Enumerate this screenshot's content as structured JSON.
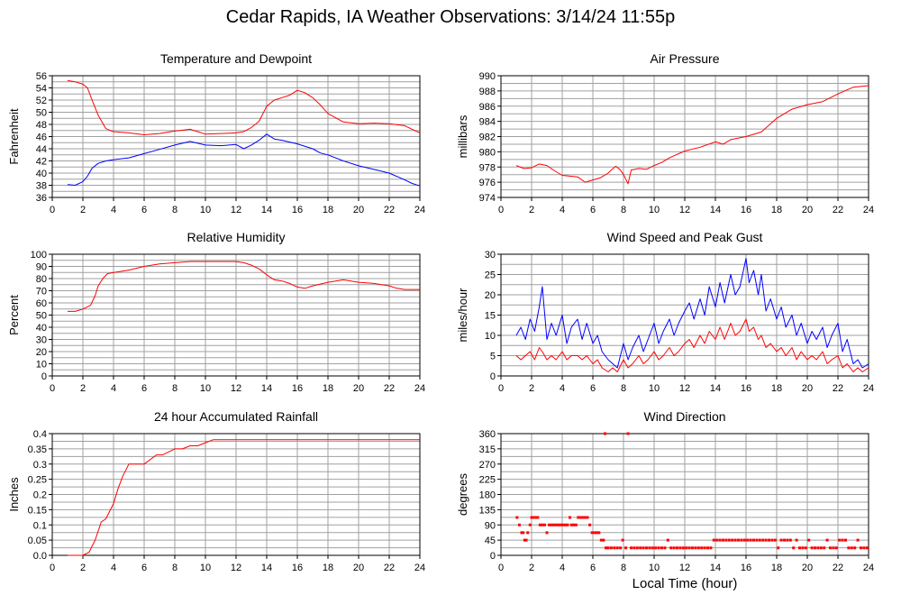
{
  "page_title": "Cedar Rapids, IA Weather Observations: 3/14/24 11:55p",
  "x_axis_label": "Local Time (hour)",
  "colors": {
    "red": "#ff0000",
    "blue": "#0000ff",
    "grid": "#a0a0a0",
    "frame": "#000000"
  },
  "chart_data": [
    {
      "type": "line",
      "title": "Temperature and Dewpoint",
      "ylabel": "Fahrenheit",
      "xlabel": "",
      "xlim": [
        0,
        24
      ],
      "ylim": [
        36,
        56
      ],
      "x_ticks": [
        0,
        2,
        4,
        6,
        8,
        10,
        12,
        14,
        16,
        18,
        20,
        22,
        24
      ],
      "y_ticks": [
        36,
        38,
        40,
        42,
        44,
        46,
        48,
        50,
        52,
        54,
        56
      ],
      "grid": true,
      "series": [
        {
          "color": "#ff0000",
          "x": [
            1.0,
            1.5,
            2.0,
            2.3,
            2.6,
            3.0,
            3.5,
            4.0,
            5.0,
            6.0,
            7.0,
            8.0,
            9.0,
            10.0,
            11.0,
            12.0,
            12.5,
            13.0,
            13.5,
            14.0,
            14.5,
            15.0,
            15.5,
            16.0,
            16.5,
            17.0,
            17.5,
            18.0,
            19.0,
            20.0,
            21.0,
            22.0,
            23.0,
            23.5,
            24.0
          ],
          "values": [
            55.2,
            55.0,
            54.6,
            54.0,
            52.0,
            49.5,
            47.3,
            46.8,
            46.6,
            46.3,
            46.5,
            46.9,
            47.2,
            46.4,
            46.5,
            46.6,
            46.8,
            47.5,
            48.5,
            51.0,
            52.0,
            52.4,
            52.8,
            53.6,
            53.2,
            52.4,
            51.2,
            49.8,
            48.4,
            48.1,
            48.2,
            48.1,
            47.8,
            47.2,
            46.6
          ]
        },
        {
          "color": "#0000ff",
          "x": [
            1.0,
            1.5,
            2.0,
            2.3,
            2.6,
            3.0,
            3.5,
            4.0,
            5.0,
            6.0,
            7.0,
            8.0,
            9.0,
            10.0,
            11.0,
            12.0,
            12.5,
            13.0,
            13.5,
            14.0,
            14.5,
            15.0,
            16.0,
            17.0,
            17.5,
            18.0,
            19.0,
            20.0,
            21.0,
            22.0,
            23.0,
            23.5,
            24.0
          ],
          "values": [
            38.1,
            38.0,
            38.6,
            39.5,
            40.8,
            41.6,
            42.0,
            42.2,
            42.5,
            43.2,
            43.9,
            44.6,
            45.2,
            44.6,
            44.5,
            44.7,
            44.0,
            44.6,
            45.4,
            46.4,
            45.6,
            45.4,
            44.8,
            44.0,
            43.3,
            43.0,
            42.0,
            41.2,
            40.6,
            40.0,
            38.9,
            38.3,
            37.9
          ]
        }
      ]
    },
    {
      "type": "line",
      "title": "Air Pressure",
      "ylabel": "millibars",
      "xlabel": "",
      "xlim": [
        0,
        24
      ],
      "ylim": [
        974,
        990
      ],
      "x_ticks": [
        0,
        2,
        4,
        6,
        8,
        10,
        12,
        14,
        16,
        18,
        20,
        22,
        24
      ],
      "y_ticks": [
        974,
        976,
        978,
        980,
        982,
        984,
        986,
        988,
        990
      ],
      "grid": true,
      "series": [
        {
          "color": "#ff0000",
          "x": [
            1.0,
            1.5,
            2.0,
            2.5,
            3.0,
            3.5,
            4.0,
            4.5,
            5.0,
            5.5,
            6.0,
            6.5,
            7.0,
            7.2,
            7.5,
            7.8,
            8.0,
            8.3,
            8.5,
            9.0,
            9.5,
            10.0,
            10.5,
            11.0,
            12.0,
            13.0,
            14.0,
            14.5,
            15.0,
            16.0,
            17.0,
            18.0,
            19.0,
            20.0,
            21.0,
            22.0,
            23.0,
            24.0
          ],
          "values": [
            978.2,
            977.8,
            977.9,
            978.4,
            978.2,
            977.5,
            976.9,
            976.8,
            976.7,
            976.0,
            976.3,
            976.6,
            977.2,
            977.6,
            978.1,
            977.6,
            977.0,
            975.8,
            977.6,
            977.8,
            977.7,
            978.2,
            978.6,
            979.2,
            980.1,
            980.6,
            981.3,
            981.0,
            981.6,
            982.0,
            982.6,
            984.4,
            985.6,
            986.2,
            986.6,
            987.6,
            988.5,
            988.7
          ]
        }
      ]
    },
    {
      "type": "line",
      "title": "Relative Humidity",
      "ylabel": "Percent",
      "xlabel": "",
      "xlim": [
        0,
        24
      ],
      "ylim": [
        0,
        100
      ],
      "x_ticks": [
        0,
        2,
        4,
        6,
        8,
        10,
        12,
        14,
        16,
        18,
        20,
        22,
        24
      ],
      "y_ticks": [
        0,
        10,
        20,
        30,
        40,
        50,
        60,
        70,
        80,
        90,
        100
      ],
      "grid": true,
      "series": [
        {
          "color": "#ff0000",
          "x": [
            1.0,
            1.5,
            2.0,
            2.5,
            2.8,
            3.0,
            3.3,
            3.6,
            4.0,
            5.0,
            6.0,
            7.0,
            8.0,
            9.0,
            10.0,
            11.0,
            12.0,
            12.5,
            13.0,
            13.5,
            14.0,
            14.5,
            15.0,
            15.5,
            16.0,
            16.5,
            17.0,
            18.0,
            19.0,
            20.0,
            21.0,
            22.0,
            22.5,
            23.0,
            24.0
          ],
          "values": [
            53,
            53,
            55,
            58,
            66,
            74,
            80,
            84,
            85,
            87,
            90,
            92,
            93,
            94,
            94,
            94,
            94,
            93,
            91,
            88,
            83,
            79,
            78,
            76,
            73,
            72,
            74,
            77,
            79,
            77,
            76,
            74,
            72,
            71,
            71
          ]
        }
      ]
    },
    {
      "type": "line",
      "title": "Wind Speed and Peak Gust",
      "ylabel": "miles/hour",
      "xlabel": "",
      "xlim": [
        0,
        24
      ],
      "ylim": [
        0,
        30
      ],
      "x_ticks": [
        0,
        2,
        4,
        6,
        8,
        10,
        12,
        14,
        16,
        18,
        20,
        22,
        24
      ],
      "y_ticks": [
        0,
        5,
        10,
        15,
        20,
        25,
        30
      ],
      "grid": true,
      "series": [
        {
          "color": "#0000ff",
          "x": [
            1.0,
            1.3,
            1.6,
            1.9,
            2.2,
            2.5,
            2.7,
            3.0,
            3.3,
            3.6,
            4.0,
            4.3,
            4.6,
            5.0,
            5.3,
            5.6,
            6.0,
            6.3,
            6.6,
            7.0,
            7.3,
            7.6,
            8.0,
            8.3,
            8.6,
            9.0,
            9.3,
            9.6,
            10.0,
            10.3,
            10.6,
            11.0,
            11.3,
            11.6,
            12.0,
            12.3,
            12.6,
            13.0,
            13.3,
            13.6,
            14.0,
            14.3,
            14.6,
            15.0,
            15.3,
            15.6,
            16.0,
            16.2,
            16.5,
            16.8,
            17.0,
            17.3,
            17.6,
            18.0,
            18.3,
            18.6,
            19.0,
            19.3,
            19.6,
            20.0,
            20.3,
            20.6,
            21.0,
            21.3,
            21.6,
            22.0,
            22.3,
            22.6,
            23.0,
            23.3,
            23.6,
            24.0
          ],
          "values": [
            10,
            12,
            9,
            14,
            11,
            17,
            22,
            9,
            13,
            10,
            15,
            8,
            12,
            14,
            9,
            13,
            8,
            10,
            6,
            4,
            3,
            2,
            8,
            4,
            7,
            10,
            6,
            9,
            13,
            8,
            11,
            14,
            10,
            13,
            16,
            18,
            14,
            19,
            15,
            22,
            17,
            23,
            18,
            25,
            20,
            22,
            29,
            23,
            26,
            20,
            25,
            16,
            19,
            14,
            17,
            12,
            15,
            10,
            13,
            8,
            11,
            9,
            12,
            7,
            10,
            13,
            6,
            9,
            3,
            4,
            2,
            3
          ]
        },
        {
          "color": "#ff0000",
          "x": [
            1.0,
            1.3,
            1.6,
            1.9,
            2.2,
            2.5,
            2.7,
            3.0,
            3.3,
            3.6,
            4.0,
            4.3,
            4.6,
            5.0,
            5.3,
            5.6,
            6.0,
            6.3,
            6.6,
            7.0,
            7.3,
            7.6,
            8.0,
            8.3,
            8.6,
            9.0,
            9.3,
            9.6,
            10.0,
            10.3,
            10.6,
            11.0,
            11.3,
            11.6,
            12.0,
            12.3,
            12.6,
            13.0,
            13.3,
            13.6,
            14.0,
            14.3,
            14.6,
            15.0,
            15.3,
            15.6,
            16.0,
            16.2,
            16.5,
            16.8,
            17.0,
            17.3,
            17.6,
            18.0,
            18.3,
            18.6,
            19.0,
            19.3,
            19.6,
            20.0,
            20.3,
            20.6,
            21.0,
            21.3,
            21.6,
            22.0,
            22.3,
            22.6,
            23.0,
            23.3,
            23.6,
            24.0
          ],
          "values": [
            5,
            4,
            5,
            6,
            4,
            7,
            6,
            4,
            5,
            4,
            6,
            4,
            5,
            5,
            4,
            5,
            3,
            4,
            2,
            1,
            2,
            1,
            4,
            2,
            3,
            5,
            3,
            4,
            6,
            4,
            5,
            7,
            5,
            6,
            8,
            9,
            7,
            10,
            8,
            11,
            9,
            12,
            9,
            13,
            10,
            11,
            14,
            11,
            12,
            9,
            10,
            7,
            8,
            6,
            7,
            5,
            7,
            4,
            6,
            4,
            5,
            4,
            6,
            3,
            4,
            5,
            2,
            3,
            1,
            2,
            1,
            2
          ]
        }
      ]
    },
    {
      "type": "line",
      "title": "24 hour Accumulated Rainfall",
      "ylabel": "Inches",
      "xlabel": "",
      "xlim": [
        0,
        24
      ],
      "ylim": [
        0,
        0.4
      ],
      "x_ticks": [
        0,
        2,
        4,
        6,
        8,
        10,
        12,
        14,
        16,
        18,
        20,
        22,
        24
      ],
      "y_ticks": [
        0.0,
        0.05,
        0.1,
        0.15,
        0.2,
        0.25,
        0.3,
        0.35,
        0.4
      ],
      "y_tick_labels": [
        "0.0",
        "0.05",
        "0.1",
        "0.15",
        "0.2",
        "0.25",
        "0.3",
        "0.35",
        "0.4"
      ],
      "grid": true,
      "series": [
        {
          "color": "#ff0000",
          "x": [
            1.0,
            2.0,
            2.4,
            2.8,
            3.2,
            3.5,
            4.0,
            4.3,
            4.6,
            5.0,
            5.3,
            5.6,
            6.0,
            6.8,
            7.2,
            7.6,
            8.0,
            8.5,
            9.0,
            9.5,
            10.0,
            10.5,
            11.0,
            12.0,
            14.0,
            16.0,
            18.0,
            20.0,
            22.0,
            24.0
          ],
          "values": [
            0.0,
            0.0,
            0.01,
            0.05,
            0.11,
            0.12,
            0.17,
            0.22,
            0.26,
            0.3,
            0.3,
            0.3,
            0.3,
            0.33,
            0.33,
            0.34,
            0.35,
            0.35,
            0.36,
            0.36,
            0.37,
            0.38,
            0.38,
            0.38,
            0.38,
            0.38,
            0.38,
            0.38,
            0.38,
            0.38
          ]
        }
      ]
    },
    {
      "type": "scatter",
      "title": "Wind Direction",
      "ylabel": "degrees",
      "xlabel": "Local Time (hour)",
      "xlim": [
        0,
        24
      ],
      "ylim": [
        0,
        360
      ],
      "x_ticks": [
        0,
        2,
        4,
        6,
        8,
        10,
        12,
        14,
        16,
        18,
        20,
        22,
        24
      ],
      "y_ticks": [
        0,
        45,
        90,
        135,
        180,
        225,
        270,
        315,
        360
      ],
      "grid": true,
      "series": [
        {
          "color": "#ff0000",
          "x": [
            1.05,
            1.2,
            1.35,
            1.45,
            1.55,
            1.65,
            1.75,
            1.9,
            2.0,
            2.1,
            2.25,
            2.4,
            2.55,
            2.7,
            2.85,
            3.0,
            3.15,
            3.3,
            3.45,
            3.6,
            3.75,
            3.9,
            4.05,
            4.2,
            4.35,
            4.5,
            4.6,
            4.75,
            4.9,
            5.05,
            5.2,
            5.35,
            5.5,
            5.65,
            5.8,
            5.95,
            6.1,
            6.25,
            6.4,
            6.55,
            6.7,
            6.8,
            6.85,
            7.0,
            7.2,
            7.4,
            7.6,
            7.8,
            7.95,
            8.15,
            8.3,
            8.5,
            8.7,
            8.9,
            9.1,
            9.3,
            9.5,
            9.7,
            9.9,
            10.1,
            10.3,
            10.5,
            10.7,
            10.9,
            11.1,
            11.3,
            11.5,
            11.7,
            11.9,
            12.1,
            12.3,
            12.5,
            12.7,
            12.9,
            13.1,
            13.3,
            13.5,
            13.7,
            13.9,
            14.1,
            14.3,
            14.5,
            14.7,
            14.9,
            15.1,
            15.3,
            15.5,
            15.7,
            15.9,
            16.1,
            16.3,
            16.5,
            16.7,
            16.9,
            17.1,
            17.3,
            17.5,
            17.7,
            17.9,
            18.1,
            18.3,
            18.5,
            18.7,
            18.9,
            19.1,
            19.3,
            19.5,
            19.7,
            19.9,
            20.1,
            20.3,
            20.5,
            20.7,
            20.9,
            21.1,
            21.3,
            21.5,
            21.7,
            21.9,
            22.1,
            22.3,
            22.5,
            22.7,
            22.9,
            23.1,
            23.3,
            23.5,
            23.7,
            23.9
          ],
          "values": [
            112,
            90,
            67,
            67,
            45,
            45,
            67,
            90,
            112,
            112,
            112,
            112,
            90,
            90,
            90,
            67,
            90,
            90,
            90,
            90,
            90,
            90,
            90,
            90,
            90,
            112,
            90,
            90,
            90,
            112,
            112,
            112,
            112,
            112,
            90,
            67,
            67,
            67,
            67,
            45,
            45,
            360,
            22,
            22,
            22,
            22,
            22,
            22,
            45,
            22,
            360,
            22,
            22,
            22,
            22,
            22,
            22,
            22,
            22,
            22,
            22,
            22,
            22,
            45,
            22,
            22,
            22,
            22,
            22,
            22,
            22,
            22,
            22,
            22,
            22,
            22,
            22,
            22,
            45,
            45,
            45,
            45,
            45,
            45,
            45,
            45,
            45,
            45,
            45,
            45,
            45,
            45,
            45,
            45,
            45,
            45,
            45,
            45,
            45,
            22,
            45,
            45,
            45,
            45,
            22,
            45,
            22,
            22,
            22,
            45,
            22,
            22,
            22,
            22,
            22,
            45,
            22,
            22,
            22,
            45,
            45,
            45,
            22,
            22,
            22,
            45,
            22,
            22,
            22
          ]
        }
      ]
    }
  ]
}
